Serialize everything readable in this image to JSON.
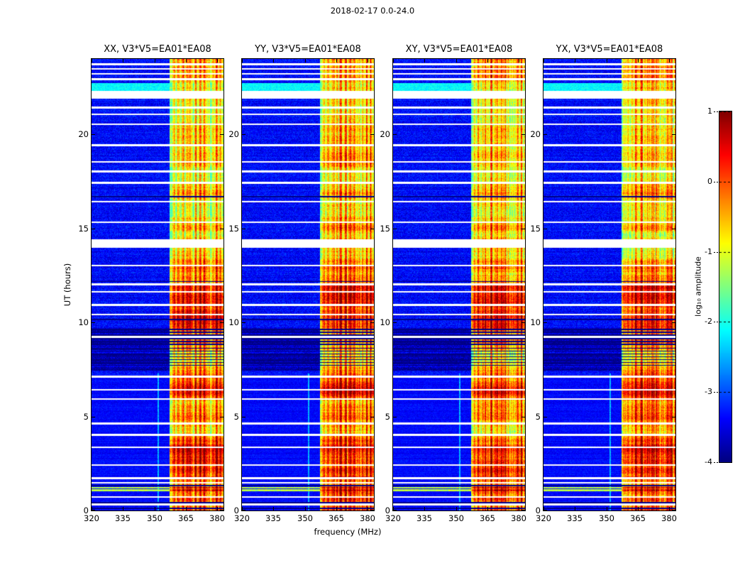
{
  "chart_data": {
    "type": "heatmap",
    "title": "2018-02-17 0.0-24.0",
    "xlabel": "frequency (MHz)",
    "ylabel": "UT (hours)",
    "panels": [
      {
        "label": "XX, V3*V5=EA01*EA08"
      },
      {
        "label": "YY, V3*V5=EA01*EA08"
      },
      {
        "label": "XY, V3*V5=EA01*EA08"
      },
      {
        "label": "YX, V3*V5=EA01*EA08"
      }
    ],
    "x_range_mhz": [
      320,
      383
    ],
    "x_ticks": [
      320,
      335,
      350,
      365,
      380
    ],
    "y_range_hours": [
      0,
      24
    ],
    "y_ticks": [
      0,
      5,
      10,
      15,
      20
    ],
    "colorbar": {
      "label": "log₁₀ amplitude",
      "vmin": -4,
      "vmax": 1,
      "ticks": [
        1,
        0,
        -1,
        -2,
        -3,
        -4
      ],
      "colormap": "jet"
    },
    "features": {
      "background_level": -3.35,
      "rfi_band_mhz": [
        357.2,
        383
      ],
      "rfi_band_dip_mhz": [
        375.4,
        377.2
      ],
      "strong_channels_mhz": [
        364.1,
        366.9,
        369.8,
        372.0,
        373.9,
        376.2,
        379.6,
        381.3
      ],
      "narrow_line_mhz": 351.9,
      "narrow_line_hours": [
        0,
        7.3
      ],
      "data_gap_hours": [
        23.72,
        23.47,
        23.2,
        22.92,
        21.42,
        21.06,
        20.52,
        19.42,
        18.52,
        18.02,
        17.42,
        16.42,
        15.32,
        13.02,
        12.02,
        11.62,
        10.92,
        10.42,
        9.22,
        7.12,
        6.42,
        5.92,
        4.62,
        4.02,
        3.37,
        2.42,
        1.72,
        1.47,
        0.72,
        0.32
      ],
      "thick_gap_hours": [
        [
          21.88,
          22.3
        ],
        [
          13.96,
          14.4
        ]
      ],
      "dark_row_hours": [
        16.67,
        12.17,
        10.15,
        9.62,
        9.47,
        9.32,
        9.12,
        8.97,
        8.82,
        8.62,
        8.47,
        8.32,
        8.17,
        8.02,
        7.87,
        7.72,
        1.32,
        0.42,
        0.12
      ],
      "dark_textured_hours": [
        7.45,
        9.75
      ],
      "cyan_band_hours": [
        22.32,
        22.72
      ],
      "broadband_rfi_hours": [
        [
          1.02,
          1.12
        ],
        [
          1.16,
          1.24
        ]
      ],
      "quiet_noise_hours": [
        0,
        7.25
      ]
    }
  }
}
